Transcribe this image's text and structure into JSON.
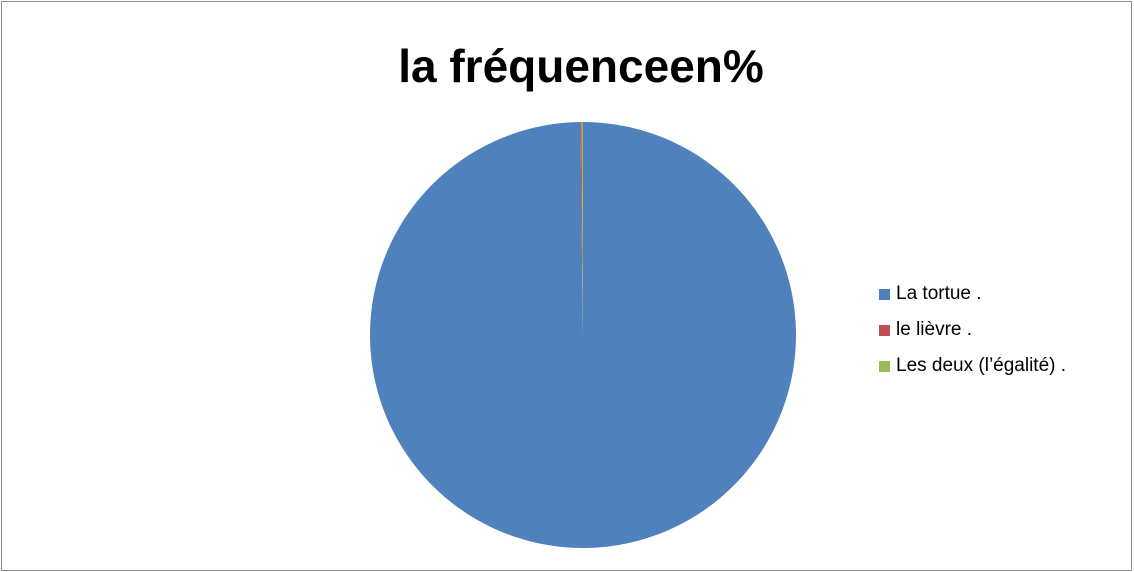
{
  "chart_data": {
    "type": "pie",
    "title": "la fréquenceen%",
    "categories": [
      "La tortue .",
      "le lièvre .",
      "Les deux (l’égalité) ."
    ],
    "values": [
      99.8,
      0.1,
      0.1
    ],
    "colors": [
      "#4f81bd",
      "#c0504d",
      "#9bbb59"
    ],
    "legend_position": "right"
  }
}
